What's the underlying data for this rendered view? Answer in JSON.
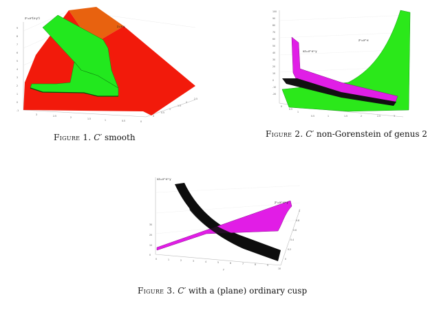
{
  "figures": [
    {
      "caption_label": "Figure 1.",
      "caption_math": "C′",
      "caption_rest": "smooth",
      "surface_labels": [
        "z²=x³(x-y²)",
        "z=x·y"
      ],
      "ticks_left": [
        "9",
        "8",
        "7",
        "6",
        "5",
        "4",
        "3",
        "2",
        "1",
        "0",
        "-1"
      ],
      "ticks_bottom": [
        "3",
        "2.5",
        "2",
        "1.5",
        "1",
        "0.5",
        "0"
      ],
      "ticks_right": [
        "0",
        "0.5",
        "1",
        "1.5",
        "2",
        "2.5"
      ],
      "colors": {
        "red": "#f21a0b",
        "orange": "#e8620f",
        "green": "#22e81e"
      }
    },
    {
      "caption_label": "Figure 2.",
      "caption_math": "C′",
      "caption_rest": "non-Gorenstein of genus 2",
      "surface_labels": [
        "z²=x⁵·x",
        "xz=x⁵·x²·y"
      ],
      "ticks_left": [
        "100",
        "90",
        "80",
        "70",
        "60",
        "50",
        "40",
        "30",
        "20",
        "10",
        "0",
        "-10",
        "-20"
      ],
      "ticks_bottom": [
        "0.5",
        "1",
        "1.5",
        "2",
        "2.5",
        "3"
      ],
      "ticks_right": [
        "0",
        "0.5",
        "1"
      ],
      "colors": {
        "green": "#2be81a",
        "magenta": "#e01ee6",
        "black": "#111111"
      }
    },
    {
      "caption_label": "Figure 3.",
      "caption_math": "C′",
      "caption_rest": "with a (plane) ordinary cusp",
      "surface_labels": [
        "z²=x²·x²·y",
        "xz=x³·x²·y"
      ],
      "ticks_left": [
        "30",
        "20",
        "10",
        "0"
      ],
      "ticks_bottom": [
        "0",
        "1",
        "2",
        "3",
        "4",
        "5",
        "6",
        "7",
        "8",
        "9",
        "10"
      ],
      "ticks_right": [
        "0",
        "0.2",
        "0.4",
        "0.6",
        "0.8",
        "1"
      ],
      "axis_letter": "y",
      "colors": {
        "magenta": "#e11de6",
        "black": "#0d0d0d"
      }
    }
  ]
}
